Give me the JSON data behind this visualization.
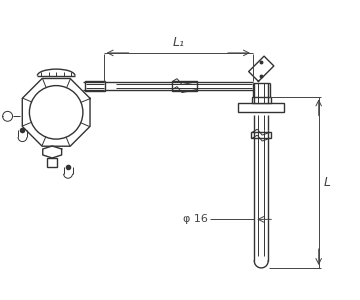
{
  "bg_color": "#ffffff",
  "line_color": "#333333",
  "dim_color": "#444444",
  "L1_label": "L₁",
  "L_label": "L",
  "phi_label": "φ 16",
  "fig_width": 3.6,
  "fig_height": 3.0,
  "dpi": 100
}
